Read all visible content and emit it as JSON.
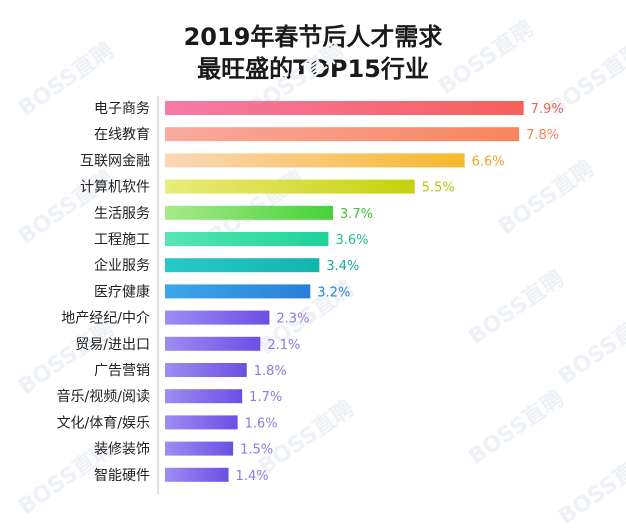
{
  "watermark": "BOSS直聘",
  "chart_data": {
    "type": "bar",
    "orientation": "horizontal",
    "title": "2019年春节后人才需求",
    "subtitle": "最旺盛的TOP15行业",
    "categories": [
      "电子商务",
      "在线教育",
      "互联网金融",
      "计算机软件",
      "生活服务",
      "工程施工",
      "企业服务",
      "医疗健康",
      "地产经纪/中介",
      "贸易/进出口",
      "广告营销",
      "音乐/视频/阅读",
      "文化/体育/娱乐",
      "装修装饰",
      "智能硬件"
    ],
    "values": [
      7.9,
      7.8,
      6.6,
      5.5,
      3.7,
      3.6,
      3.4,
      3.2,
      2.3,
      2.1,
      1.8,
      1.7,
      1.6,
      1.5,
      1.4
    ],
    "value_labels": [
      "7.9%",
      "7.8%",
      "6.6%",
      "5.5%",
      "3.7%",
      "3.6%",
      "3.4%",
      "3.2%",
      "2.3%",
      "2.1%",
      "1.8%",
      "1.7%",
      "1.6%",
      "1.5%",
      "1.4%"
    ],
    "bar_gradients": [
      [
        "#f57aa8",
        "#f5605a"
      ],
      [
        "#f9aaa0",
        "#f7855e"
      ],
      [
        "#fbd6b8",
        "#f5b92c"
      ],
      [
        "#e8ec7a",
        "#c6d20a"
      ],
      [
        "#a8e98a",
        "#46d23a"
      ],
      [
        "#58e6b2",
        "#1fd19a"
      ],
      [
        "#2ac9c9",
        "#13b3ad"
      ],
      [
        "#3aa8e8",
        "#2a7fd8"
      ],
      [
        "#9f8cf2",
        "#6b4fe4"
      ],
      [
        "#9f8cf2",
        "#6b4fe4"
      ],
      [
        "#9f8cf2",
        "#6b4fe4"
      ],
      [
        "#9f8cf2",
        "#6b4fe4"
      ],
      [
        "#9f8cf2",
        "#6b4fe4"
      ],
      [
        "#9f8cf2",
        "#6b4fe4"
      ],
      [
        "#9f8cf2",
        "#6b4fe4"
      ]
    ],
    "label_colors": [
      "#f0635a",
      "#f2855a",
      "#f0a22a",
      "#b8c40a",
      "#3cc43a",
      "#1fc296",
      "#13aaa6",
      "#2a86d8",
      "#8a7ae8",
      "#8a7ae8",
      "#8a7ae8",
      "#8a7ae8",
      "#8a7ae8",
      "#8a7ae8",
      "#8a7ae8"
    ],
    "xlim": [
      0,
      8
    ],
    "grid": false,
    "legend": false
  }
}
